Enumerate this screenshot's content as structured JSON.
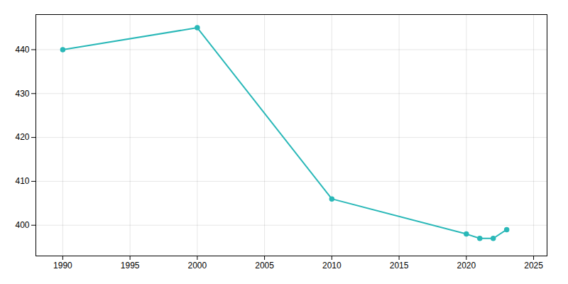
{
  "chart_data": {
    "type": "line",
    "x": [
      1990,
      2000,
      2010,
      2020,
      2021,
      2022,
      2023
    ],
    "values": [
      440,
      445,
      406,
      398,
      397,
      397,
      399
    ],
    "color": "#2ab8b8",
    "marker": "circle",
    "xlim": [
      1988,
      2026
    ],
    "ylim": [
      393,
      448
    ],
    "xticks": [
      1990,
      1995,
      2000,
      2005,
      2010,
      2015,
      2020,
      2025
    ],
    "yticks": [
      400,
      410,
      420,
      430,
      440
    ],
    "grid": true
  }
}
